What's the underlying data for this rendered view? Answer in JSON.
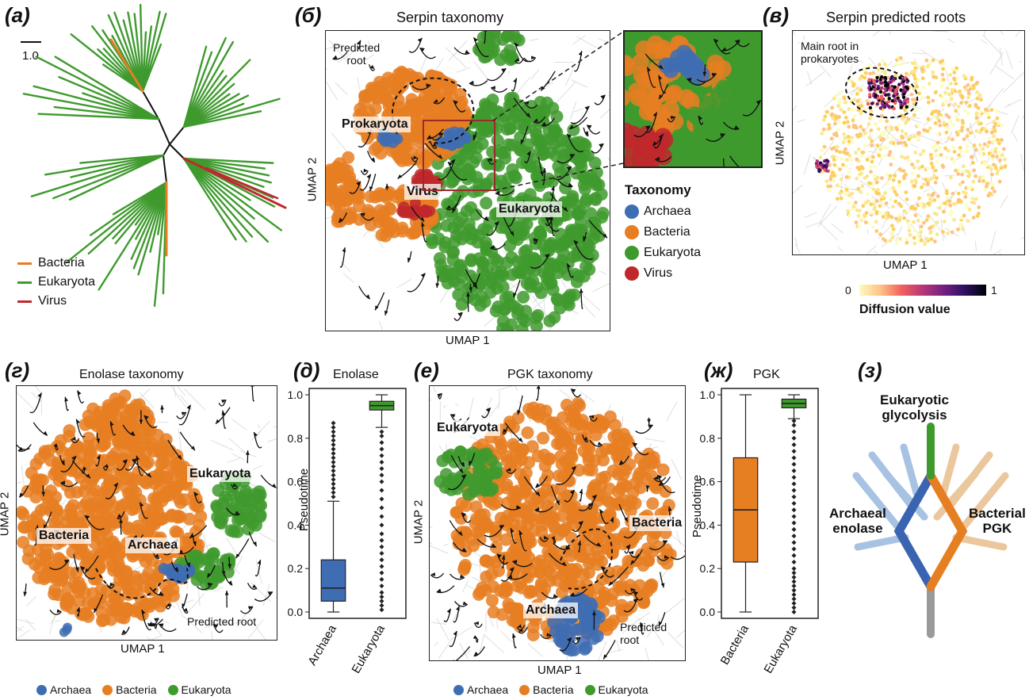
{
  "panels": {
    "a": {
      "letter": "(а)",
      "scale_label": "1.0",
      "legend": [
        "Bacteria",
        "Eukaryota",
        "Virus"
      ]
    },
    "b": {
      "letter": "(б)",
      "title": "Serpin taxonomy",
      "xlabel": "UMAP 1",
      "ylabel": "UMAP 2",
      "annotations": {
        "predicted_root": "Predicted\nroot",
        "prokaryota": "Prokaryota",
        "virus": "Virus",
        "eukaryota": "Eukaryota"
      },
      "legend_title": "Taxonomy",
      "legend": [
        "Archaea",
        "Bacteria",
        "Eukaryota",
        "Virus"
      ]
    },
    "c": {
      "letter": "(в)",
      "title": "Serpin predicted roots",
      "xlabel": "UMAP 1",
      "ylabel": "UMAP 2",
      "annotation": "Main root in\nprokaryotes",
      "colorbar_min": "0",
      "colorbar_max": "1",
      "colorbar_label": "Diffusion value"
    },
    "d": {
      "letter": "(г)",
      "title": "Enolase taxonomy",
      "xlabel": "UMAP 1",
      "ylabel": "UMAP 2",
      "annotations": {
        "eukaryota": "Eukaryota",
        "bacteria": "Bacteria",
        "archaea": "Archaea",
        "predicted_root": "Predicted root"
      },
      "legend": [
        "Archaea",
        "Bacteria",
        "Eukaryota"
      ]
    },
    "e": {
      "letter": "(д)",
      "title": "Enolase",
      "ylabel": "Pseudotime"
    },
    "f": {
      "letter": "(е)",
      "title": "PGK taxonomy",
      "xlabel": "UMAP 1",
      "ylabel": "UMAP 2",
      "annotations": {
        "eukaryota": "Eukaryota",
        "bacteria": "Bacteria",
        "archaea": "Archaea",
        "predicted_root": "Predicted\nroot"
      },
      "legend": [
        "Archaea",
        "Bacteria",
        "Eukaryota"
      ]
    },
    "g": {
      "letter": "(ж)",
      "title": "PGK",
      "ylabel": "Pseudotime"
    },
    "h": {
      "letter": "(з)",
      "top_label": "Eukaryotic\nglycolysis",
      "left_label": "Archaeal\nenolase",
      "right_label": "Bacterial\nPGK"
    }
  },
  "colors": {
    "archaea": "#3f6db3",
    "bacteria": "#e67e22",
    "eukaryota": "#3f9a2e",
    "virus": "#c0282d",
    "stream": "#111111"
  },
  "chart_data": [
    {
      "type": "box",
      "title": "Enolase",
      "ylabel": "Pseudotime",
      "ylim": [
        0,
        1.0
      ],
      "ticks": [
        "0.0",
        "0.2",
        "0.4",
        "0.6",
        "0.8",
        "1.0"
      ],
      "categories": [
        "Archaea",
        "Eukaryota"
      ],
      "series": [
        {
          "name": "Archaea",
          "color": "#3f6db3",
          "whislo": 0.0,
          "q1": 0.05,
          "med": 0.11,
          "q3": 0.24,
          "whishi": 0.51,
          "fliers": [
            0.53,
            0.55,
            0.57,
            0.59,
            0.61,
            0.63,
            0.65,
            0.67,
            0.69,
            0.71,
            0.73,
            0.75,
            0.77,
            0.79,
            0.81,
            0.83,
            0.85,
            0.87
          ]
        },
        {
          "name": "Eukaryota",
          "color": "#3f9a2e",
          "whislo": 0.85,
          "q1": 0.93,
          "med": 0.95,
          "q3": 0.97,
          "whishi": 1.0,
          "fliers": [
            0.01,
            0.03,
            0.05,
            0.07,
            0.09,
            0.12,
            0.15,
            0.18,
            0.21,
            0.24,
            0.27,
            0.3,
            0.33,
            0.36,
            0.4,
            0.44,
            0.48,
            0.52,
            0.56,
            0.6,
            0.63,
            0.66,
            0.69,
            0.72,
            0.75,
            0.78,
            0.81,
            0.83
          ]
        }
      ]
    },
    {
      "type": "box",
      "title": "PGK",
      "ylabel": "Pseudotime",
      "ylim": [
        0,
        1.0
      ],
      "ticks": [
        "0.0",
        "0.2",
        "0.4",
        "0.6",
        "0.8",
        "1.0"
      ],
      "categories": [
        "Bacteria",
        "Eukaryota"
      ],
      "series": [
        {
          "name": "Bacteria",
          "color": "#e67e22",
          "whislo": 0.0,
          "q1": 0.23,
          "med": 0.47,
          "q3": 0.71,
          "whishi": 1.0,
          "fliers": []
        },
        {
          "name": "Eukaryota",
          "color": "#3f9a2e",
          "whislo": 0.89,
          "q1": 0.94,
          "med": 0.96,
          "q3": 0.98,
          "whishi": 1.0,
          "fliers": [
            0.0,
            0.02,
            0.04,
            0.06,
            0.08,
            0.1,
            0.12,
            0.14,
            0.16,
            0.18,
            0.2,
            0.23,
            0.26,
            0.29,
            0.32,
            0.35,
            0.38,
            0.41,
            0.44,
            0.47,
            0.5,
            0.53,
            0.56,
            0.59,
            0.62,
            0.65,
            0.68,
            0.71,
            0.74,
            0.77,
            0.8,
            0.83,
            0.86,
            0.88
          ]
        }
      ]
    }
  ]
}
